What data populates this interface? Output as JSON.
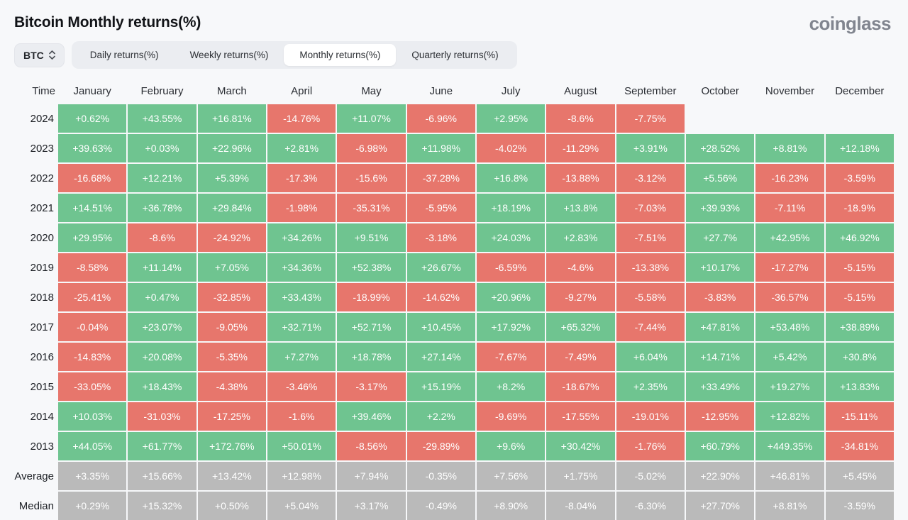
{
  "page": {
    "title": "Bitcoin Monthly returns(%)",
    "logo": "coinglass"
  },
  "controls": {
    "symbol_select": {
      "value": "BTC"
    },
    "tabs": [
      {
        "label": "Daily returns(%)",
        "active": false
      },
      {
        "label": "Weekly returns(%)",
        "active": false
      },
      {
        "label": "Monthly returns(%)",
        "active": true
      },
      {
        "label": "Quarterly returns(%)",
        "active": false
      }
    ]
  },
  "colors": {
    "positive": "#6fc490",
    "negative": "#e7766c",
    "summary": "#bababa",
    "background": "#f7f8fa"
  },
  "chart_data": {
    "type": "table",
    "columns": [
      "Time",
      "January",
      "February",
      "March",
      "April",
      "May",
      "June",
      "July",
      "August",
      "September",
      "October",
      "November",
      "December"
    ],
    "rows": [
      {
        "label": "2024",
        "summary": false,
        "values": [
          "+0.62%",
          "+43.55%",
          "+16.81%",
          "-14.76%",
          "+11.07%",
          "-6.96%",
          "+2.95%",
          "-8.6%",
          "-7.75%",
          "",
          "",
          ""
        ]
      },
      {
        "label": "2023",
        "summary": false,
        "values": [
          "+39.63%",
          "+0.03%",
          "+22.96%",
          "+2.81%",
          "-6.98%",
          "+11.98%",
          "-4.02%",
          "-11.29%",
          "+3.91%",
          "+28.52%",
          "+8.81%",
          "+12.18%"
        ]
      },
      {
        "label": "2022",
        "summary": false,
        "values": [
          "-16.68%",
          "+12.21%",
          "+5.39%",
          "-17.3%",
          "-15.6%",
          "-37.28%",
          "+16.8%",
          "-13.88%",
          "-3.12%",
          "+5.56%",
          "-16.23%",
          "-3.59%"
        ]
      },
      {
        "label": "2021",
        "summary": false,
        "values": [
          "+14.51%",
          "+36.78%",
          "+29.84%",
          "-1.98%",
          "-35.31%",
          "-5.95%",
          "+18.19%",
          "+13.8%",
          "-7.03%",
          "+39.93%",
          "-7.11%",
          "-18.9%"
        ]
      },
      {
        "label": "2020",
        "summary": false,
        "values": [
          "+29.95%",
          "-8.6%",
          "-24.92%",
          "+34.26%",
          "+9.51%",
          "-3.18%",
          "+24.03%",
          "+2.83%",
          "-7.51%",
          "+27.7%",
          "+42.95%",
          "+46.92%"
        ]
      },
      {
        "label": "2019",
        "summary": false,
        "values": [
          "-8.58%",
          "+11.14%",
          "+7.05%",
          "+34.36%",
          "+52.38%",
          "+26.67%",
          "-6.59%",
          "-4.6%",
          "-13.38%",
          "+10.17%",
          "-17.27%",
          "-5.15%"
        ]
      },
      {
        "label": "2018",
        "summary": false,
        "values": [
          "-25.41%",
          "+0.47%",
          "-32.85%",
          "+33.43%",
          "-18.99%",
          "-14.62%",
          "+20.96%",
          "-9.27%",
          "-5.58%",
          "-3.83%",
          "-36.57%",
          "-5.15%"
        ]
      },
      {
        "label": "2017",
        "summary": false,
        "values": [
          "-0.04%",
          "+23.07%",
          "-9.05%",
          "+32.71%",
          "+52.71%",
          "+10.45%",
          "+17.92%",
          "+65.32%",
          "-7.44%",
          "+47.81%",
          "+53.48%",
          "+38.89%"
        ]
      },
      {
        "label": "2016",
        "summary": false,
        "values": [
          "-14.83%",
          "+20.08%",
          "-5.35%",
          "+7.27%",
          "+18.78%",
          "+27.14%",
          "-7.67%",
          "-7.49%",
          "+6.04%",
          "+14.71%",
          "+5.42%",
          "+30.8%"
        ]
      },
      {
        "label": "2015",
        "summary": false,
        "values": [
          "-33.05%",
          "+18.43%",
          "-4.38%",
          "-3.46%",
          "-3.17%",
          "+15.19%",
          "+8.2%",
          "-18.67%",
          "+2.35%",
          "+33.49%",
          "+19.27%",
          "+13.83%"
        ]
      },
      {
        "label": "2014",
        "summary": false,
        "values": [
          "+10.03%",
          "-31.03%",
          "-17.25%",
          "-1.6%",
          "+39.46%",
          "+2.2%",
          "-9.69%",
          "-17.55%",
          "-19.01%",
          "-12.95%",
          "+12.82%",
          "-15.11%"
        ]
      },
      {
        "label": "2013",
        "summary": false,
        "values": [
          "+44.05%",
          "+61.77%",
          "+172.76%",
          "+50.01%",
          "-8.56%",
          "-29.89%",
          "+9.6%",
          "+30.42%",
          "-1.76%",
          "+60.79%",
          "+449.35%",
          "-34.81%"
        ]
      },
      {
        "label": "Average",
        "summary": true,
        "values": [
          "+3.35%",
          "+15.66%",
          "+13.42%",
          "+12.98%",
          "+7.94%",
          "-0.35%",
          "+7.56%",
          "+1.75%",
          "-5.02%",
          "+22.90%",
          "+46.81%",
          "+5.45%"
        ]
      },
      {
        "label": "Median",
        "summary": true,
        "values": [
          "+0.29%",
          "+15.32%",
          "+0.50%",
          "+5.04%",
          "+3.17%",
          "-0.49%",
          "+8.90%",
          "-8.04%",
          "-6.30%",
          "+27.70%",
          "+8.81%",
          "-3.59%"
        ]
      }
    ]
  }
}
